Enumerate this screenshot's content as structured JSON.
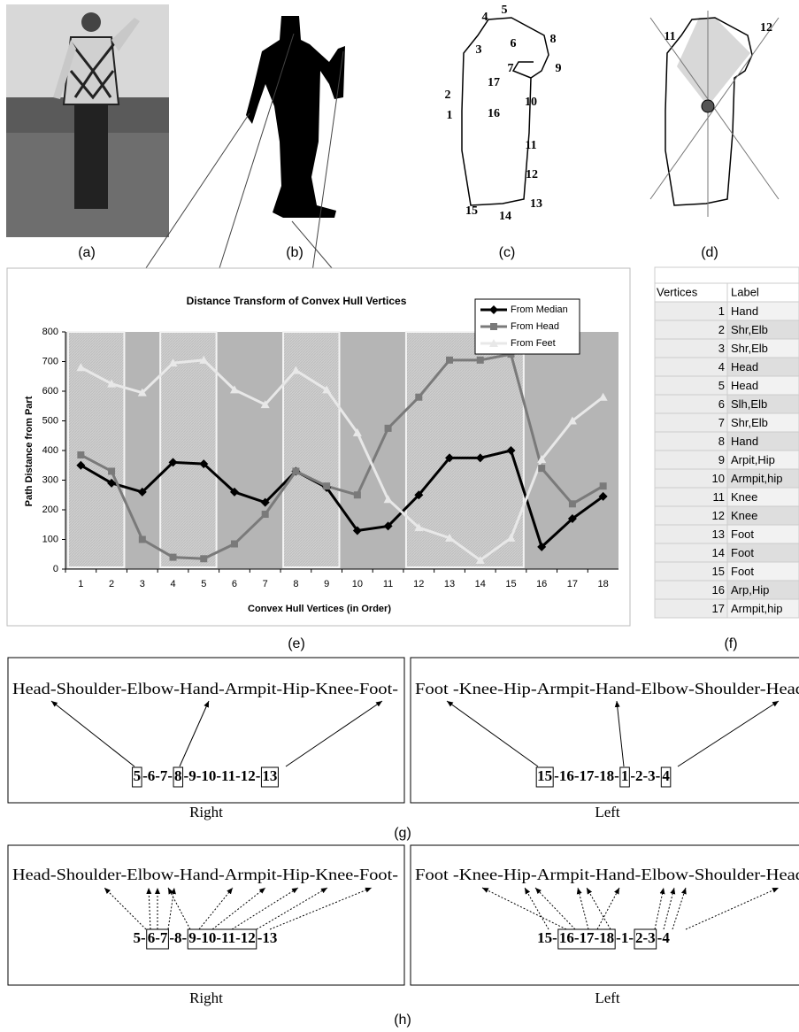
{
  "panel_labels": [
    "(a)",
    "(b)",
    "(c)",
    "(d)",
    "(e)",
    "(f)",
    "(g)",
    "(h)"
  ],
  "contour_labels": [
    "1",
    "2",
    "3",
    "4",
    "5",
    "6",
    "7",
    "8",
    "9",
    "10",
    "11",
    "12",
    "13",
    "14",
    "15",
    "16",
    "17"
  ],
  "skeleton_labels": [
    "11",
    "12"
  ],
  "chart_data": {
    "type": "line",
    "title": "Distance Transform of Convex Hull Vertices",
    "xlabel": "Convex Hull Vertices (in Order)",
    "ylabel": "Path Distance from Part",
    "categories": [
      1,
      2,
      3,
      4,
      5,
      6,
      7,
      8,
      9,
      10,
      11,
      12,
      13,
      14,
      15,
      16,
      17,
      18
    ],
    "series": [
      {
        "name": "From Median",
        "color": "#000000",
        "marker": "diamond",
        "values": [
          350,
          290,
          260,
          360,
          355,
          260,
          225,
          330,
          275,
          130,
          145,
          250,
          375,
          375,
          400,
          75,
          170,
          245
        ]
      },
      {
        "name": "From Head",
        "color": "#7a7a7a",
        "marker": "square",
        "values": [
          385,
          330,
          100,
          40,
          35,
          85,
          185,
          330,
          280,
          250,
          475,
          580,
          705,
          705,
          725,
          340,
          220,
          280
        ]
      },
      {
        "name": "From Feet",
        "color": "#e8e8e8",
        "marker": "triangle",
        "values": [
          680,
          625,
          595,
          695,
          705,
          605,
          555,
          670,
          605,
          460,
          235,
          140,
          105,
          30,
          105,
          370,
          500,
          580
        ]
      }
    ],
    "ylim": [
      0,
      800
    ],
    "yticks": [
      0,
      100,
      200,
      300,
      400,
      500,
      600,
      700,
      800
    ],
    "grid": false,
    "legend": "upper right"
  },
  "table": {
    "columns": [
      "Vertices",
      "Label"
    ],
    "rows": [
      [
        "1",
        "Hand"
      ],
      [
        "2",
        "Shr,Elb"
      ],
      [
        "3",
        "Shr,Elb"
      ],
      [
        "4",
        "Head"
      ],
      [
        "5",
        "Head"
      ],
      [
        "6",
        "Slh,Elb"
      ],
      [
        "7",
        "Shr,Elb"
      ],
      [
        "8",
        "Hand"
      ],
      [
        "9",
        "Arpit,Hip"
      ],
      [
        "10",
        "Armpit,hip"
      ],
      [
        "11",
        "Knee"
      ],
      [
        "12",
        "Knee"
      ],
      [
        "13",
        "Foot"
      ],
      [
        "14",
        "Foot"
      ],
      [
        "15",
        "Foot"
      ],
      [
        "16",
        "Arp,Hip"
      ],
      [
        "17",
        "Armpit,hip"
      ]
    ]
  },
  "matching": {
    "g": {
      "right": {
        "parts": "Head-Shoulder-Elbow-Hand-Armpit-Hip-Knee-Foot-",
        "caption": "Right",
        "sequence": [
          {
            "text": "5",
            "boxed": true
          },
          {
            "text": "-6-7-",
            "boxed": false
          },
          {
            "text": "8",
            "boxed": true
          },
          {
            "text": "-9-10-11-12-",
            "boxed": false
          },
          {
            "text": "13",
            "boxed": true
          }
        ]
      },
      "left": {
        "parts": "Foot -Knee-Hip-Armpit-Hand-Elbow-Shoulder-Head",
        "caption": "Left",
        "sequence": [
          {
            "text": "15",
            "boxed": true
          },
          {
            "text": "-16-17-18-",
            "boxed": false
          },
          {
            "text": "1",
            "boxed": true
          },
          {
            "text": "-2-3-",
            "boxed": false
          },
          {
            "text": "4",
            "boxed": true
          }
        ]
      }
    },
    "h": {
      "right": {
        "parts": "Head-Shoulder-Elbow-Hand-Armpit-Hip-Knee-Foot-",
        "caption": "Right",
        "sequence": [
          {
            "text": "5-",
            "boxed": false
          },
          {
            "text": "6-7",
            "boxed": true
          },
          {
            "text": "-8-",
            "boxed": false
          },
          {
            "text": "9-10-11-12",
            "boxed": true
          },
          {
            "text": "-13",
            "boxed": false
          }
        ]
      },
      "left": {
        "parts": "Foot -Knee-Hip-Armpit-Hand-Elbow-Shoulder-Head",
        "caption": "Left",
        "sequence": [
          {
            "text": "15-",
            "boxed": false
          },
          {
            "text": "16-17-18",
            "boxed": true
          },
          {
            "text": "-1-",
            "boxed": false
          },
          {
            "text": "2-3",
            "boxed": true
          },
          {
            "text": "-4",
            "boxed": false
          }
        ]
      }
    }
  }
}
